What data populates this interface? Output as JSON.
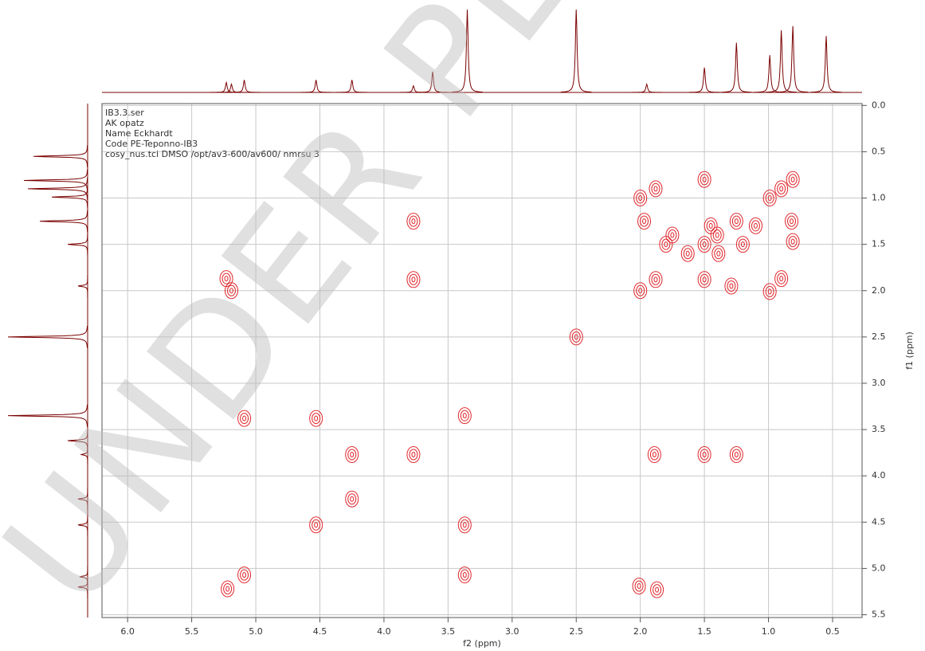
{
  "chart_data": {
    "type": "contour",
    "annotations": [
      "IB3.3.ser",
      "AK opatz",
      "Name Eckhardt",
      "Code PE-Teponno-IB3",
      "cosy_nus.tci DMSO /opt/av3-600/av600/ nmrsu 3"
    ],
    "watermark": "UNDER PEER REVIEW",
    "x_label": "f2 (ppm)",
    "y_label": "f1 (ppm)",
    "xlim": [
      6.2,
      0.27
    ],
    "ylim": [
      -0.02,
      5.53
    ],
    "xticks": [
      {
        "value": 6,
        "label": "6.0"
      },
      5.5,
      {
        "value": 5,
        "label": "5.0"
      },
      4.5,
      {
        "value": 4,
        "label": "4.0"
      },
      3.5,
      {
        "value": 3,
        "label": "3.0"
      },
      2.5,
      {
        "value": 2,
        "label": "2.0"
      },
      1.5,
      {
        "value": 1,
        "label": "1.0"
      },
      0.5
    ],
    "yticks": [
      {
        "value": 0,
        "label": "0.0"
      },
      0.5,
      {
        "value": 1,
        "label": "1.0"
      },
      1.5,
      {
        "value": 2,
        "label": "2.0"
      },
      2.5,
      {
        "value": 3,
        "label": "3.0"
      },
      3.5,
      {
        "value": 4,
        "label": "4.0"
      },
      4.5,
      {
        "value": 5,
        "label": "5.0"
      },
      5.5
    ],
    "grid": true,
    "peaks": {
      "color": "#e0262b",
      "x": [
        5.23,
        5.19,
        5.09,
        4.53,
        3.37,
        4.25,
        3.77,
        4.25,
        4.53,
        3.37,
        5.22,
        5.09,
        3.37,
        3.77,
        3.77,
        2.5,
        1.89,
        1.5,
        1.25,
        2.01,
        1.87,
        2.0,
        1.88,
        1.5,
        0.99,
        0.9,
        0.81,
        2.0,
        1.88,
        1.5,
        1.29,
        0.99,
        0.9,
        0.81,
        1.5,
        1.25,
        1.4,
        1.8,
        1.75,
        1.97,
        1.1,
        0.82,
        1.63,
        1.39,
        1.2,
        1.45
      ],
      "y": [
        1.87,
        2.0,
        3.38,
        3.38,
        3.35,
        3.77,
        3.77,
        4.25,
        4.53,
        4.53,
        5.22,
        5.07,
        5.07,
        1.25,
        1.88,
        2.5,
        3.77,
        3.77,
        3.77,
        5.19,
        5.23,
        1.0,
        0.9,
        0.8,
        1.0,
        0.9,
        0.8,
        2.0,
        1.88,
        1.88,
        1.95,
        2.01,
        1.87,
        1.47,
        1.5,
        1.25,
        1.4,
        1.5,
        1.4,
        1.25,
        1.3,
        1.25,
        1.6,
        1.6,
        1.5,
        1.3
      ]
    },
    "f2_projection": {
      "color": "#7a0000",
      "x": [
        5.23,
        5.19,
        5.09,
        4.53,
        4.25,
        3.77,
        3.62,
        3.35,
        2.5,
        1.95,
        1.5,
        1.25,
        0.99,
        0.9,
        0.81,
        0.55
      ],
      "intensity": [
        0.12,
        0.1,
        0.15,
        0.15,
        0.15,
        0.08,
        0.25,
        1.0,
        1.0,
        0.1,
        0.3,
        0.6,
        0.45,
        0.75,
        0.8,
        0.68
      ]
    },
    "f1_projection": {
      "color": "#7a0000",
      "y": [
        5.2,
        5.09,
        4.53,
        4.25,
        3.77,
        3.62,
        3.35,
        2.5,
        1.95,
        1.5,
        1.25,
        0.99,
        0.9,
        0.81,
        0.55
      ],
      "intensity": [
        0.12,
        0.1,
        0.12,
        0.12,
        0.08,
        0.25,
        1.0,
        1.0,
        0.12,
        0.25,
        0.6,
        0.45,
        0.75,
        0.8,
        0.68
      ]
    }
  }
}
